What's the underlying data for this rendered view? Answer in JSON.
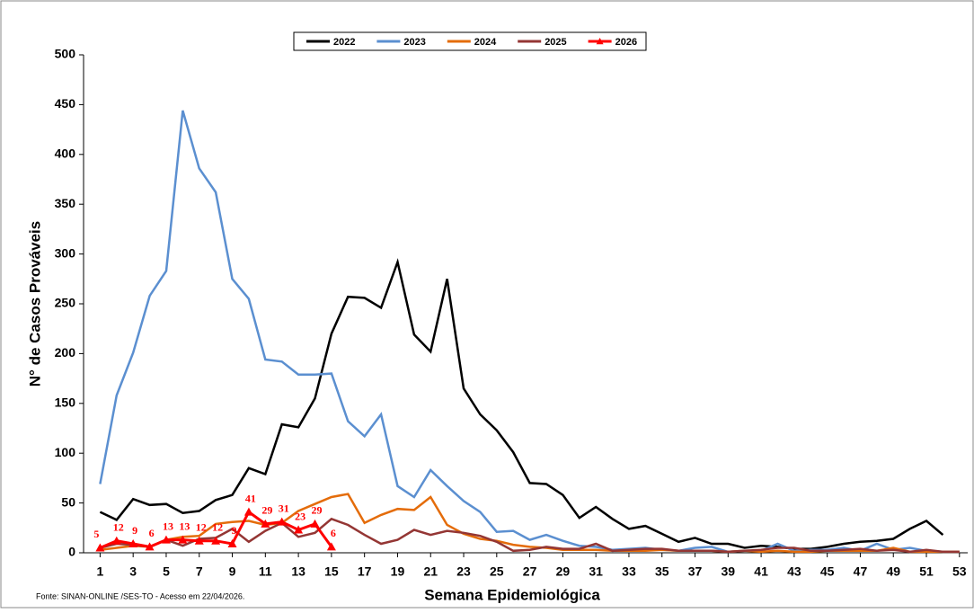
{
  "chart_data": {
    "type": "line",
    "x_label": "Semana Epidemiológica",
    "y_label": "N° de Casos Prováveis",
    "source": "Fonte: SINAN-ONLINE /SES-TO - Acesso em 22/04/2026.",
    "x": [
      1,
      2,
      3,
      4,
      5,
      6,
      7,
      8,
      9,
      10,
      11,
      12,
      13,
      14,
      15,
      16,
      17,
      18,
      19,
      20,
      21,
      22,
      23,
      24,
      25,
      26,
      27,
      28,
      29,
      30,
      31,
      32,
      33,
      34,
      35,
      36,
      37,
      38,
      39,
      40,
      41,
      42,
      43,
      44,
      45,
      46,
      47,
      48,
      49,
      50,
      51,
      52,
      53
    ],
    "xlim": [
      0,
      53.5
    ],
    "xticks": [
      1,
      3,
      5,
      7,
      9,
      11,
      13,
      15,
      17,
      19,
      21,
      23,
      25,
      27,
      29,
      31,
      33,
      35,
      37,
      39,
      41,
      43,
      45,
      47,
      49,
      51,
      53
    ],
    "ylim": [
      0,
      500
    ],
    "yticks": [
      0,
      50,
      100,
      150,
      200,
      250,
      300,
      350,
      400,
      450,
      500
    ],
    "legend": "top",
    "series": [
      {
        "name": "2022",
        "color": "#000000",
        "values": [
          41,
          33,
          54,
          48,
          49,
          40,
          42,
          53,
          58,
          85,
          79,
          129,
          126,
          155,
          220,
          257,
          256,
          246,
          292,
          219,
          202,
          275,
          165,
          139,
          123,
          101,
          70,
          69,
          58,
          35,
          46,
          34,
          24,
          27,
          19,
          11,
          15,
          9,
          9,
          5,
          7,
          6,
          4,
          4,
          6,
          9,
          11,
          12,
          14,
          24,
          32,
          18,
          null
        ]
      },
      {
        "name": "2023",
        "color": "#5b8fd0",
        "values": [
          69,
          158,
          201,
          258,
          283,
          444,
          386,
          362,
          275,
          255,
          194,
          192,
          179,
          179,
          180,
          132,
          117,
          139,
          67,
          56,
          83,
          67,
          52,
          41,
          21,
          22,
          13,
          18,
          12,
          7,
          6,
          3,
          4,
          5,
          3,
          2,
          5,
          6,
          1,
          2,
          2,
          9,
          2,
          3,
          3,
          5,
          2,
          9,
          3,
          5,
          2,
          1,
          1
        ]
      },
      {
        "name": "2024",
        "color": "#e46c0a",
        "values": [
          3,
          5,
          7,
          6,
          13,
          16,
          17,
          29,
          31,
          32,
          28,
          30,
          42,
          49,
          56,
          59,
          30,
          38,
          44,
          43,
          56,
          28,
          19,
          14,
          12,
          8,
          6,
          5,
          3,
          3,
          3,
          2,
          2,
          2,
          3,
          2,
          2,
          2,
          1,
          2,
          1,
          2,
          1,
          1,
          2,
          2,
          2,
          2,
          5,
          1,
          1,
          1,
          1
        ]
      },
      {
        "name": "2025",
        "color": "#943634",
        "values": [
          5,
          9,
          8,
          6,
          13,
          7,
          14,
          15,
          24,
          11,
          22,
          30,
          16,
          20,
          34,
          28,
          18,
          9,
          13,
          23,
          18,
          22,
          20,
          17,
          11,
          2,
          3,
          6,
          4,
          4,
          9,
          2,
          3,
          4,
          4,
          2,
          2,
          2,
          1,
          2,
          3,
          5,
          5,
          2,
          2,
          3,
          4,
          2,
          3,
          1,
          3,
          1,
          1
        ]
      },
      {
        "name": "2026",
        "color": "#ff0000",
        "marker": "triangle",
        "data_labels": true,
        "values": [
          5,
          12,
          9,
          6,
          13,
          13,
          12,
          12,
          9,
          41,
          29,
          31,
          23,
          29,
          6,
          null,
          null,
          null,
          null,
          null,
          null,
          null,
          null,
          null,
          null,
          null,
          null,
          null,
          null,
          null,
          null,
          null,
          null,
          null,
          null,
          null,
          null,
          null,
          null,
          null,
          null,
          null,
          null,
          null,
          null,
          null,
          null,
          null,
          null,
          null,
          null,
          null,
          null
        ]
      }
    ]
  }
}
